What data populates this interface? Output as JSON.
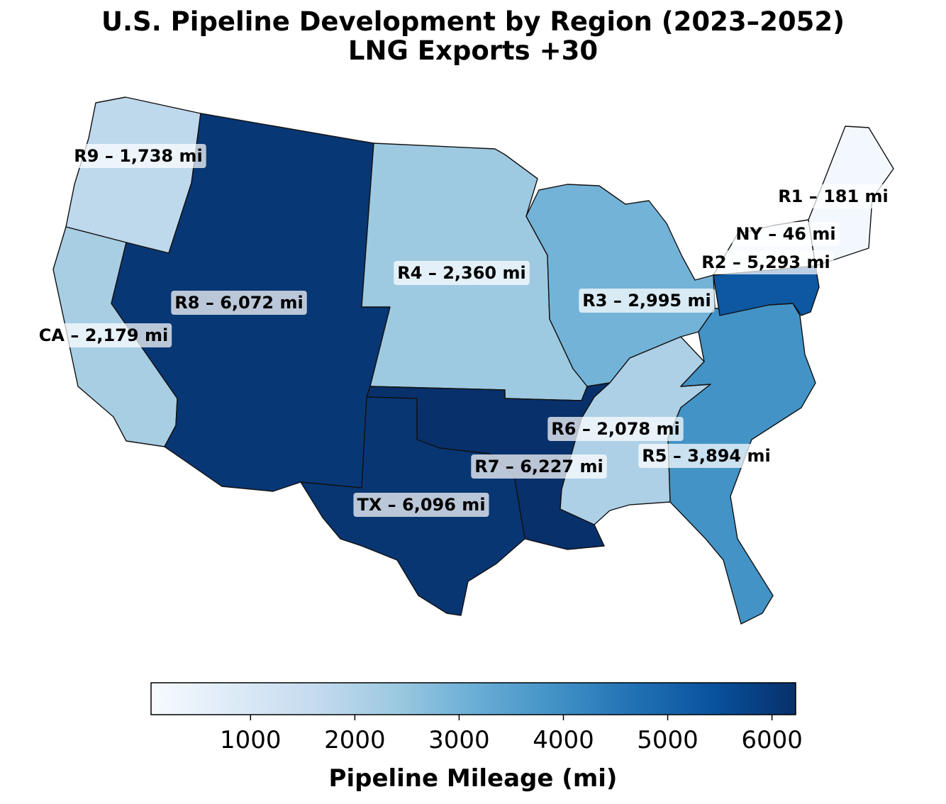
{
  "title": {
    "line1": "U.S. Pipeline Development by Region (2023–2052)",
    "line2": "LNG Exports +30"
  },
  "colorbar": {
    "label": "Pipeline Mileage (mi)",
    "min": 46,
    "max": 6227,
    "ticks": [
      1000,
      2000,
      3000,
      4000,
      5000,
      6000
    ],
    "colormap": [
      "#f7fbff",
      "#deebf7",
      "#c6dbef",
      "#9ecae1",
      "#6baed6",
      "#4292c6",
      "#2171b5",
      "#08519c",
      "#08306b"
    ]
  },
  "chart_data": {
    "type": "choropleth",
    "value_unit": "mi",
    "regions": [
      {
        "id": "R9",
        "label": "R9 – 1,738 mi",
        "value": 1738
      },
      {
        "id": "CA",
        "label": "CA – 2,179 mi",
        "value": 2179
      },
      {
        "id": "R8",
        "label": "R8 – 6,072 mi",
        "value": 6072
      },
      {
        "id": "R4",
        "label": "R4 – 2,360 mi",
        "value": 2360
      },
      {
        "id": "R3",
        "label": "R3 – 2,995 mi",
        "value": 2995
      },
      {
        "id": "R7",
        "label": "R7 – 6,227 mi",
        "value": 6227
      },
      {
        "id": "TX",
        "label": "TX – 6,096 mi",
        "value": 6096
      },
      {
        "id": "R6",
        "label": "R6 – 2,078 mi",
        "value": 2078
      },
      {
        "id": "R5",
        "label": "R5 – 3,894 mi",
        "value": 3894
      },
      {
        "id": "R2",
        "label": "R2 – 5,293 mi",
        "value": 5293
      },
      {
        "id": "NY",
        "label": "NY – 46 mi",
        "value": 46
      },
      {
        "id": "R1",
        "label": "R1 – 181 mi",
        "value": 181
      }
    ]
  }
}
